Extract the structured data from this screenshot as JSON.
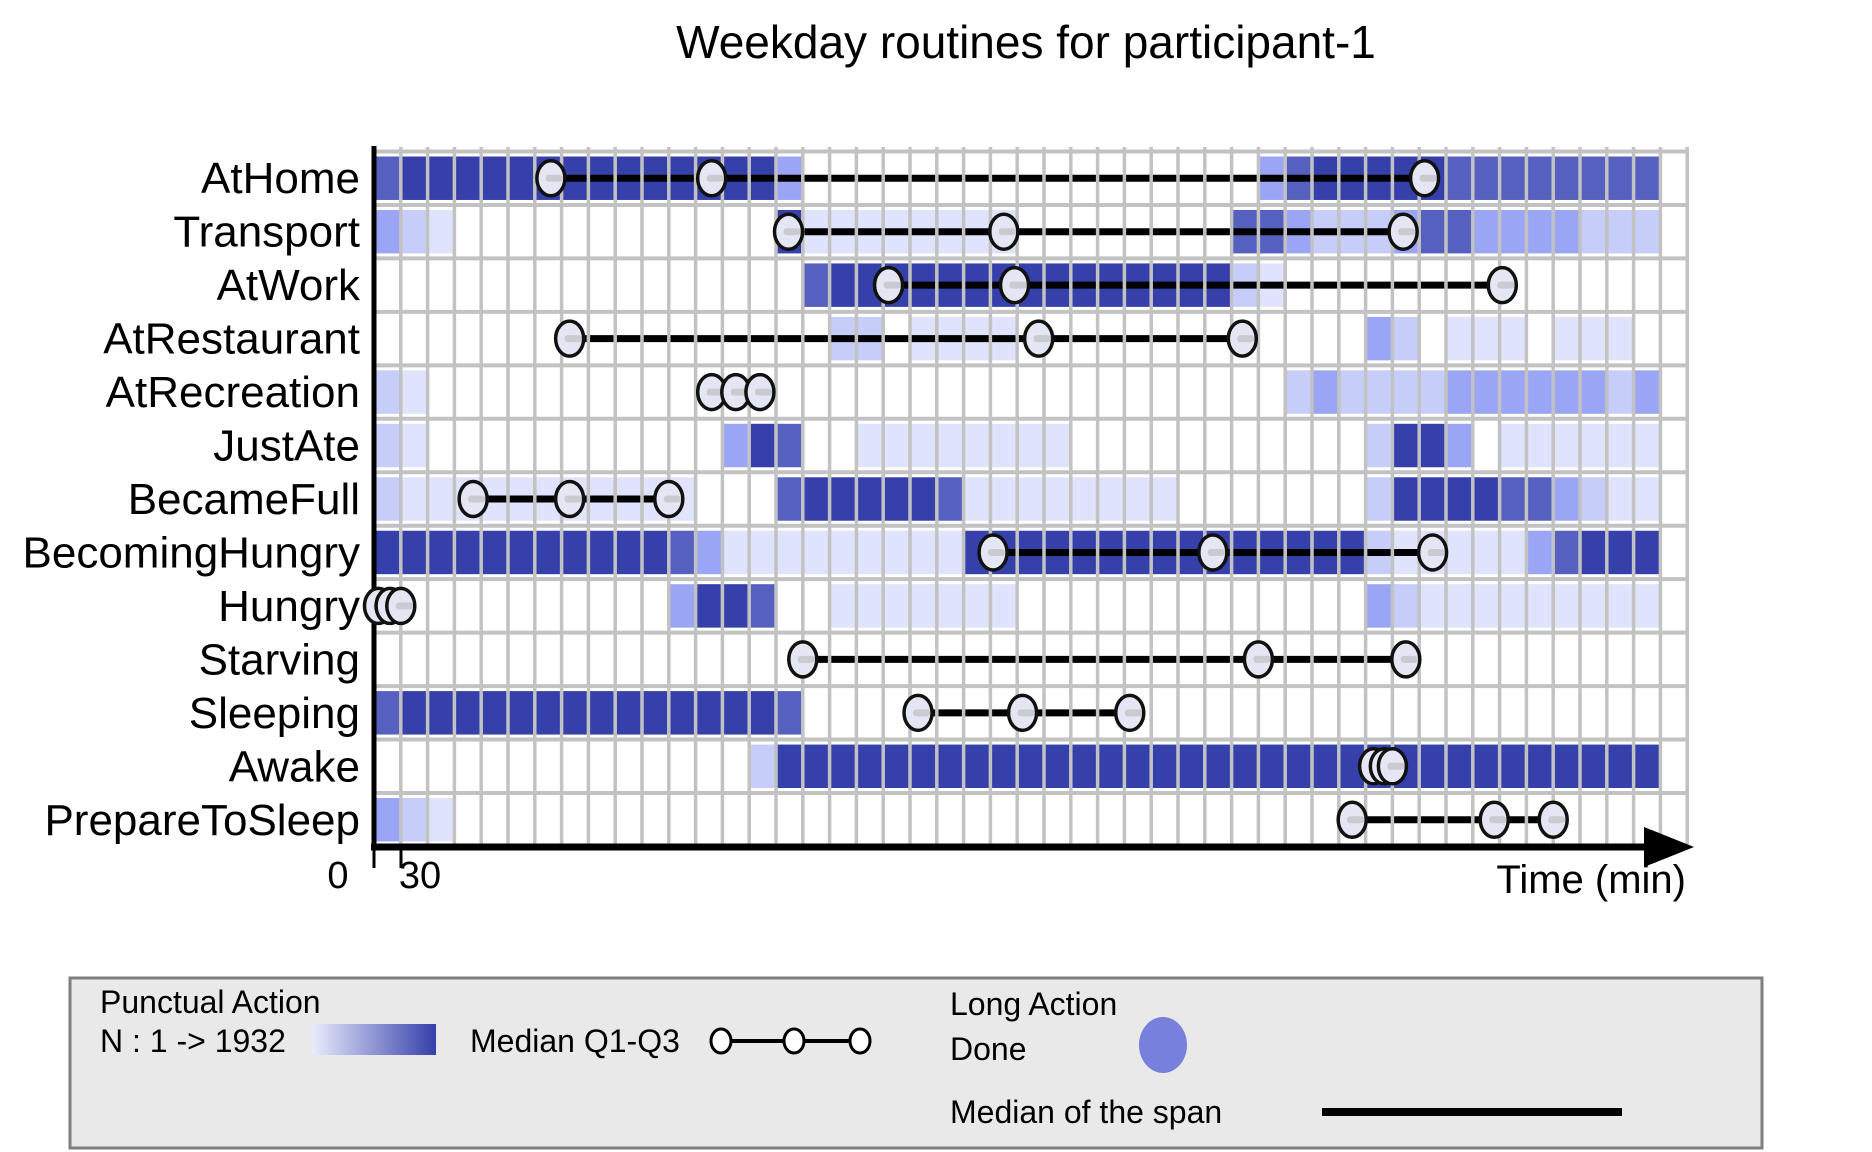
{
  "title": "Weekday routines for participant-1",
  "legend": {
    "punctual": {
      "title": "Punctual Action",
      "n_range": "N : 1 -> 1932",
      "gradient_start": "#e9ecfc",
      "gradient_end": "#3540aa",
      "median_label": "Median Q1-Q3"
    },
    "long": {
      "title": "Long Action",
      "done_label": "Done",
      "done_color": "#7780dd",
      "median_span_label": "Median of the span"
    }
  },
  "colors": {
    "grid": "#c2c2c2",
    "axis": "#000000",
    "circle_fill": "#e4e7f3",
    "circle_dash": "#c9cbd0",
    "legend_bg": "#e9e9e9",
    "legend_border": "#7f7f7f"
  },
  "chart_data": {
    "type": "heatmap",
    "title": "Weekday routines for participant-1",
    "x_axis": {
      "axis_label": "Time (min)",
      "bin_minutes": 30,
      "n_bins": 48,
      "tick_labels": [
        {
          "label": "0",
          "minute": 0
        },
        {
          "label": "30",
          "minute": 30
        }
      ]
    },
    "color_levels": [
      "none",
      "#dfe3fb",
      "#c5cdf8",
      "#9ba5f5",
      "#5560bf",
      "#3540aa"
    ],
    "rows": [
      {
        "label": "AtHome",
        "cells": [
          4,
          5,
          5,
          5,
          5,
          5,
          5,
          5,
          5,
          5,
          5,
          5,
          5,
          5,
          5,
          3,
          0,
          0,
          0,
          0,
          0,
          0,
          0,
          0,
          0,
          0,
          0,
          0,
          0,
          0,
          0,
          0,
          0,
          3,
          4,
          5,
          5,
          5,
          5,
          5,
          4,
          4,
          4,
          4,
          4,
          4,
          4,
          4
        ],
        "markers": {
          "q1": 198,
          "median": 378,
          "q3": 1176
        }
      },
      {
        "label": "Transport",
        "cells": [
          3,
          2,
          1,
          0,
          0,
          0,
          0,
          0,
          0,
          0,
          0,
          0,
          0,
          0,
          0,
          5,
          1,
          1,
          1,
          1,
          1,
          1,
          1,
          1,
          0,
          0,
          0,
          0,
          0,
          0,
          0,
          0,
          4,
          4,
          3,
          2,
          2,
          2,
          3,
          4,
          4,
          3,
          3,
          3,
          3,
          2,
          2,
          2
        ],
        "markers": {
          "q1": 464,
          "median": 705,
          "q3": 1152
        }
      },
      {
        "label": "AtWork",
        "cells": [
          0,
          0,
          0,
          0,
          0,
          0,
          0,
          0,
          0,
          0,
          0,
          0,
          0,
          0,
          0,
          0,
          4,
          5,
          5,
          5,
          5,
          5,
          5,
          5,
          5,
          5,
          5,
          5,
          5,
          5,
          5,
          5,
          2,
          1,
          0,
          0,
          0,
          0,
          0,
          0,
          0,
          0,
          0,
          0,
          0,
          0,
          0,
          0
        ],
        "markers": {
          "q1": 576,
          "median": 717,
          "q3": 1263
        }
      },
      {
        "label": "AtRestaurant",
        "cells": [
          0,
          0,
          0,
          0,
          0,
          0,
          0,
          0,
          0,
          0,
          0,
          0,
          0,
          0,
          0,
          0,
          0,
          2,
          2,
          0,
          1,
          1,
          1,
          1,
          0,
          0,
          0,
          0,
          0,
          0,
          0,
          0,
          0,
          0,
          0,
          0,
          0,
          3,
          2,
          0,
          1,
          1,
          1,
          0,
          1,
          1,
          1,
          0
        ],
        "markers": {
          "q1": 219,
          "median": 744,
          "q3": 972
        }
      },
      {
        "label": "AtRecreation",
        "cells": [
          2,
          1,
          0,
          0,
          0,
          0,
          0,
          0,
          0,
          0,
          0,
          0,
          0,
          0,
          0,
          0,
          0,
          0,
          0,
          0,
          0,
          0,
          0,
          0,
          0,
          0,
          0,
          0,
          0,
          0,
          0,
          0,
          0,
          0,
          2,
          3,
          2,
          2,
          2,
          2,
          3,
          3,
          3,
          3,
          3,
          3,
          2,
          3
        ],
        "markers": {
          "q1": 378,
          "median": 405,
          "q3": 432
        }
      },
      {
        "label": "JustAte",
        "cells": [
          2,
          1,
          0,
          0,
          0,
          0,
          0,
          0,
          0,
          0,
          0,
          0,
          0,
          3,
          5,
          4,
          0,
          0,
          1,
          1,
          1,
          1,
          1,
          1,
          1,
          1,
          0,
          0,
          0,
          0,
          0,
          0,
          0,
          0,
          0,
          0,
          0,
          2,
          5,
          5,
          3,
          0,
          1,
          1,
          1,
          1,
          1,
          1
        ],
        "markers": null
      },
      {
        "label": "BecameFull",
        "cells": [
          2,
          1,
          1,
          1,
          1,
          1,
          1,
          1,
          1,
          1,
          1,
          1,
          0,
          0,
          0,
          4,
          5,
          5,
          5,
          5,
          5,
          4,
          1,
          1,
          1,
          1,
          1,
          1,
          1,
          1,
          0,
          0,
          0,
          0,
          0,
          0,
          0,
          2,
          5,
          5,
          5,
          5,
          4,
          4,
          3,
          2,
          1,
          1
        ],
        "markers": {
          "q1": 111,
          "median": 219,
          "q3": 330
        }
      },
      {
        "label": "BecomingHungry",
        "cells": [
          5,
          5,
          5,
          5,
          5,
          5,
          5,
          5,
          5,
          5,
          5,
          4,
          3,
          1,
          1,
          1,
          1,
          1,
          1,
          1,
          1,
          1,
          5,
          5,
          5,
          5,
          5,
          5,
          5,
          5,
          5,
          5,
          5,
          5,
          5,
          5,
          5,
          2,
          1,
          1,
          1,
          1,
          1,
          3,
          4,
          5,
          5,
          5
        ],
        "markers": {
          "q1": 693,
          "median": 939,
          "q3": 1185
        }
      },
      {
        "label": "Hungry",
        "cells": [
          0,
          0,
          0,
          0,
          0,
          0,
          0,
          0,
          0,
          0,
          0,
          3,
          5,
          5,
          4,
          0,
          0,
          1,
          1,
          1,
          1,
          1,
          1,
          1,
          0,
          0,
          0,
          0,
          0,
          0,
          0,
          0,
          0,
          0,
          0,
          0,
          0,
          3,
          2,
          1,
          1,
          1,
          1,
          1,
          1,
          1,
          1,
          1
        ],
        "markers": {
          "q1": 5,
          "median": 18,
          "q3": 30
        }
      },
      {
        "label": "Starving",
        "cells": [
          0,
          0,
          0,
          0,
          0,
          0,
          0,
          0,
          0,
          0,
          0,
          0,
          0,
          0,
          0,
          0,
          0,
          0,
          0,
          0,
          0,
          0,
          0,
          0,
          0,
          0,
          0,
          0,
          0,
          0,
          0,
          0,
          0,
          0,
          0,
          0,
          0,
          0,
          0,
          0,
          0,
          0,
          0,
          0,
          0,
          0,
          0,
          0
        ],
        "markers": {
          "q1": 480,
          "median": 990,
          "q3": 1155
        }
      },
      {
        "label": "Sleeping",
        "cells": [
          4,
          5,
          5,
          5,
          5,
          5,
          5,
          5,
          5,
          5,
          5,
          5,
          5,
          5,
          5,
          4,
          0,
          0,
          0,
          0,
          0,
          0,
          0,
          0,
          0,
          0,
          0,
          0,
          0,
          0,
          0,
          0,
          0,
          0,
          0,
          0,
          0,
          0,
          0,
          0,
          0,
          0,
          0,
          0,
          0,
          0,
          0,
          0
        ],
        "markers": {
          "q1": 609,
          "median": 726,
          "q3": 846
        }
      },
      {
        "label": "Awake",
        "cells": [
          0,
          0,
          0,
          0,
          0,
          0,
          0,
          0,
          0,
          0,
          0,
          0,
          0,
          0,
          2,
          5,
          5,
          5,
          5,
          5,
          5,
          5,
          5,
          5,
          5,
          5,
          5,
          5,
          5,
          5,
          5,
          5,
          5,
          5,
          5,
          5,
          5,
          5,
          5,
          5,
          5,
          5,
          5,
          5,
          5,
          5,
          5,
          5
        ],
        "markers": {
          "q1": 1119,
          "median": 1131,
          "q3": 1140
        }
      },
      {
        "label": "PrepareToSleep",
        "cells": [
          3,
          2,
          1,
          0,
          0,
          0,
          0,
          0,
          0,
          0,
          0,
          0,
          0,
          0,
          0,
          0,
          0,
          0,
          0,
          0,
          0,
          0,
          0,
          0,
          0,
          0,
          0,
          0,
          0,
          0,
          0,
          0,
          0,
          0,
          0,
          0,
          0,
          0,
          0,
          0,
          0,
          0,
          0,
          0,
          0,
          0,
          0,
          0
        ],
        "markers": {
          "q1": 1095,
          "median": 1254,
          "q3": 1320
        }
      }
    ]
  }
}
